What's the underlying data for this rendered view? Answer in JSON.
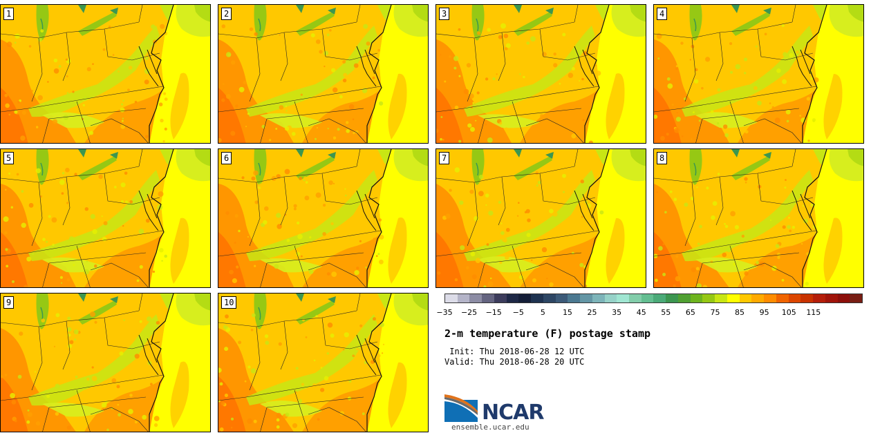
{
  "panels": [
    {
      "label": "1"
    },
    {
      "label": "2"
    },
    {
      "label": "3"
    },
    {
      "label": "4"
    },
    {
      "label": "5"
    },
    {
      "label": "6"
    },
    {
      "label": "7"
    },
    {
      "label": "8"
    },
    {
      "label": "9"
    },
    {
      "label": "10"
    }
  ],
  "colorbar": {
    "colors": [
      "#dcdce8",
      "#b4b4c8",
      "#8c8ca4",
      "#646480",
      "#3c3c5c",
      "#1e2846",
      "#141e38",
      "#1e3250",
      "#2d4664",
      "#3c5a78",
      "#4b7890",
      "#6496a5",
      "#7db4b9",
      "#96d2c8",
      "#a0e6d2",
      "#82cdaa",
      "#64be91",
      "#4baa78",
      "#3c9650",
      "#50a032",
      "#6eb41e",
      "#96c814",
      "#c8e614",
      "#ffff00",
      "#ffc800",
      "#ffaa00",
      "#ff8c00",
      "#f06400",
      "#dc4600",
      "#c83200",
      "#b41e0a",
      "#a0140a",
      "#8c0f0a",
      "#781e14"
    ],
    "ticks": [
      "−35",
      "−25",
      "−15",
      "−5",
      "5",
      "15",
      "25",
      "35",
      "45",
      "55",
      "65",
      "75",
      "85",
      "95",
      "105",
      "115"
    ]
  },
  "title": "2-m temperature (F) postage stamp",
  "init_text": " Init: Thu 2018-06-28 12 UTC",
  "valid_text": "Valid: Thu 2018-06-28 20 UTC",
  "logo": {
    "name": "NCAR",
    "url": "ensemble.ucar.edu"
  }
}
